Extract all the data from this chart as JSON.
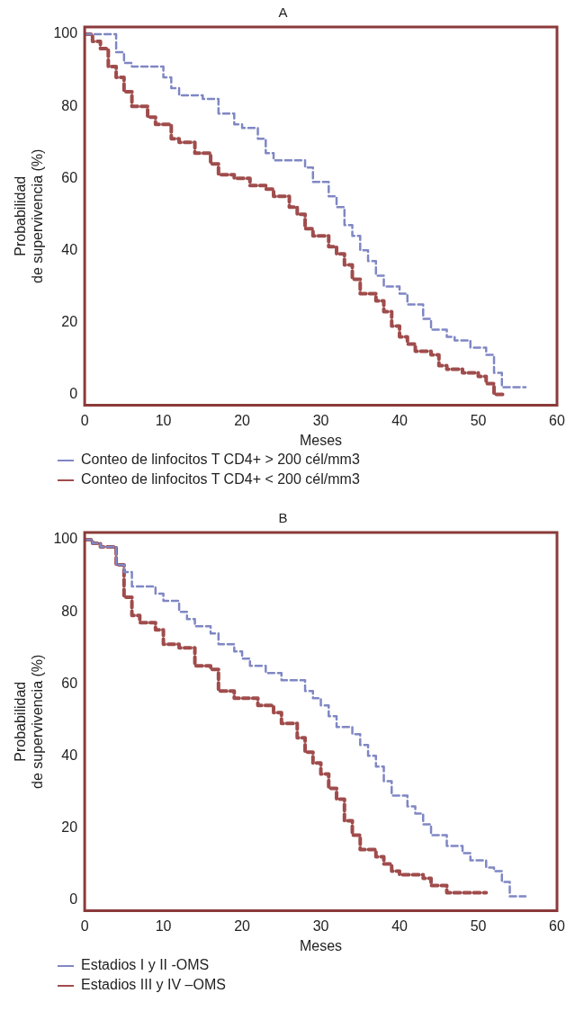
{
  "chart_data": [
    {
      "type": "step",
      "title": "A",
      "xlabel": "Meses",
      "ylabel": "Probabilidad\nde supervivencia (%)",
      "xlim": [
        0,
        60
      ],
      "xticks": [
        0,
        10,
        20,
        30,
        40,
        50,
        60
      ],
      "ylim": [
        -3,
        102
      ],
      "yticks": [
        0,
        20,
        40,
        60,
        80,
        100
      ],
      "grid": false,
      "legend": "bottom",
      "line_style": "dashed",
      "marker": "none",
      "series": [
        {
          "name": "Conteo de linfocitos T CD4+ > 200 cél/mm3",
          "color": "#7f87c4",
          "x": [
            0,
            4,
            5,
            6,
            10,
            11,
            12,
            15,
            17,
            19,
            20,
            22,
            23,
            24,
            28,
            29,
            31,
            32,
            33,
            34,
            35,
            36,
            37,
            38,
            40,
            41,
            43,
            44,
            46,
            47,
            49,
            51,
            52,
            53,
            56
          ],
          "values": [
            100,
            95,
            92,
            91,
            88,
            85,
            83,
            82,
            78,
            75,
            74,
            71,
            67,
            65,
            63,
            59,
            55,
            52,
            47,
            44,
            40,
            37,
            33,
            30,
            28,
            25,
            21,
            18,
            16,
            15,
            13,
            11,
            6,
            2,
            2
          ]
        },
        {
          "name": "Conteo de linfocitos T CD4+ < 200 cél/mm3",
          "color": "#a04c4c",
          "x": [
            0,
            1,
            2,
            3,
            4,
            5,
            6,
            8,
            9,
            11,
            12,
            14,
            16,
            17,
            19,
            21,
            23,
            24,
            26,
            27,
            28,
            29,
            31,
            32,
            33,
            34,
            35,
            37,
            38,
            39,
            40,
            41,
            42,
            44,
            45,
            46,
            48,
            50,
            51,
            52,
            53.5
          ],
          "values": [
            100,
            98,
            96,
            91,
            88,
            84,
            80,
            77,
            75,
            71,
            70,
            67,
            64,
            61,
            60,
            58,
            57,
            55,
            52,
            50,
            46,
            44,
            41,
            39,
            36,
            32,
            28,
            26,
            23,
            19,
            16,
            14,
            12,
            11,
            8,
            7,
            6,
            5,
            3,
            0,
            0
          ]
        }
      ]
    },
    {
      "type": "step",
      "title": "B",
      "xlabel": "Meses",
      "ylabel": "Probabilidad\nde supervivencia (%)",
      "xlim": [
        0,
        60
      ],
      "xticks": [
        0,
        10,
        20,
        30,
        40,
        50,
        60
      ],
      "ylim": [
        -3,
        102
      ],
      "yticks": [
        0,
        20,
        40,
        60,
        80,
        100
      ],
      "grid": false,
      "legend": "bottom",
      "line_style": "dashed",
      "marker": "none",
      "series": [
        {
          "name": "Estadios I y II -OMS",
          "color": "#7f87c4",
          "x": [
            0,
            1,
            2,
            4,
            5,
            6,
            9,
            10,
            12,
            13,
            14,
            16,
            17,
            19,
            20,
            21,
            23,
            25,
            28,
            29,
            30,
            31,
            32,
            34,
            35,
            36,
            37,
            38,
            39,
            41,
            42,
            43,
            44,
            46,
            48,
            49,
            51,
            52,
            53,
            54,
            56
          ],
          "values": [
            100,
            99,
            98,
            93,
            91,
            87,
            85,
            83,
            80,
            78,
            76,
            74,
            71,
            69,
            67,
            65,
            63,
            61,
            58,
            56,
            54,
            51,
            48,
            46,
            43,
            40,
            37,
            33,
            29,
            26,
            24,
            21,
            18,
            15,
            13,
            11,
            9,
            8,
            5,
            1,
            1
          ]
        },
        {
          "name": "Estadios III y IV –OMS",
          "color": "#a04c4c",
          "x": [
            0,
            1,
            2,
            4,
            5,
            6,
            7,
            9,
            10,
            12,
            14,
            16,
            17,
            19,
            22,
            24,
            25,
            27,
            28,
            29,
            30,
            31,
            32,
            33,
            34,
            35,
            37,
            38,
            39,
            40,
            43,
            44,
            46,
            51
          ],
          "values": [
            100,
            99,
            98,
            93,
            84,
            79,
            77,
            75,
            71,
            70,
            65,
            64,
            58,
            56,
            54,
            52,
            49,
            45,
            41,
            38,
            35,
            31,
            28,
            22,
            18,
            14,
            12,
            10,
            8,
            7,
            6,
            4,
            2,
            2
          ]
        }
      ]
    }
  ]
}
